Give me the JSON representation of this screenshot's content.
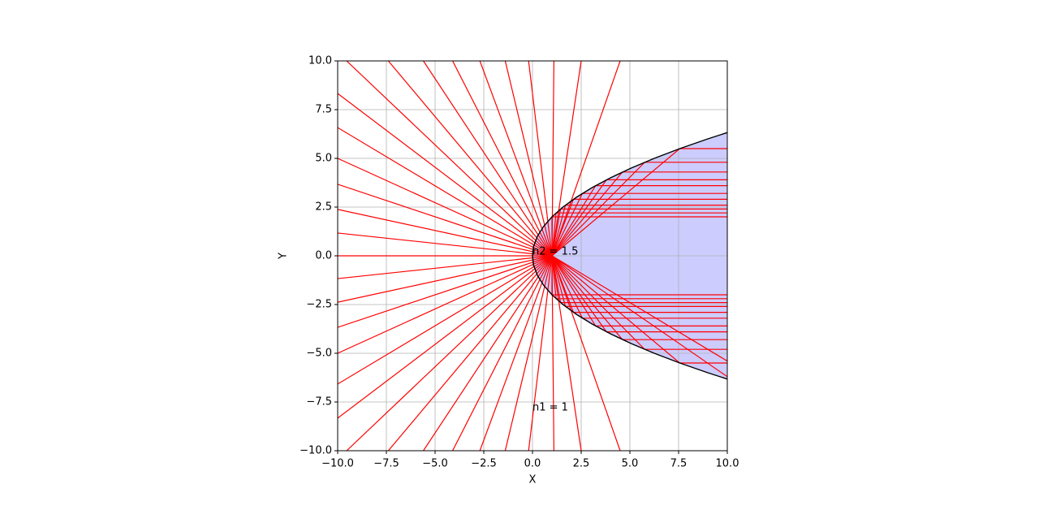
{
  "chart_data": {
    "type": "line",
    "xlabel": "X",
    "ylabel": "Y",
    "annotations": [
      "n2 = 1.5",
      "n1 = 1"
    ],
    "xlim": [
      -10,
      10
    ],
    "ylim": [
      -10,
      10
    ],
    "xticks": [
      {
        "value": -10,
        "label": "−10.0"
      },
      {
        "value": -7.5,
        "label": "−7.5"
      },
      {
        "value": -5,
        "label": "−5.0"
      },
      {
        "value": -2.5,
        "label": "−2.5"
      },
      {
        "value": 0,
        "label": "0.0"
      },
      {
        "value": 2.5,
        "label": "2.5"
      },
      {
        "value": 5,
        "label": "5.0"
      },
      {
        "value": 7.5,
        "label": "7.5"
      },
      {
        "value": 10,
        "label": "10.0"
      }
    ],
    "yticks": [
      {
        "value": -10,
        "label": "−10.0"
      },
      {
        "value": -7.5,
        "label": "−7.5"
      },
      {
        "value": -5,
        "label": "−5.0"
      },
      {
        "value": -2.5,
        "label": "−2.5"
      },
      {
        "value": 0,
        "label": "0.0"
      },
      {
        "value": 2.5,
        "label": "2.5"
      },
      {
        "value": 5,
        "label": "5.0"
      },
      {
        "value": 7.5,
        "label": "7.5"
      },
      {
        "value": 10,
        "label": "10.0"
      }
    ],
    "grid": true,
    "ray_color": "#ff0000",
    "boundary": {
      "color": "#000000",
      "fill": "#ccccff",
      "x": [
        9.99,
        9,
        7.5625,
        6.25,
        5.0625,
        4,
        3.0625,
        2.25,
        1.5625,
        1,
        0.5625,
        0.25,
        0.0625,
        0,
        0.0625,
        0.25,
        0.5625,
        1,
        1.5625,
        2.25,
        3.0625,
        4,
        5.0625,
        6.25,
        7.5625,
        9,
        9.99
      ],
      "y": [
        -6.32,
        -6,
        -5.5,
        -5,
        -4.5,
        -4,
        -3.5,
        -3,
        -2.5,
        -2,
        -1.5,
        -1,
        -0.5,
        0,
        0.5,
        1,
        1.5,
        2,
        2.5,
        3,
        3.5,
        4,
        4.5,
        5,
        5.5,
        6,
        6.32
      ]
    },
    "series": [
      {
        "x": [
          1,
          -9.54
        ],
        "y": [
          0,
          10
        ]
      },
      {
        "x": [
          1,
          -7.4
        ],
        "y": [
          0,
          10
        ]
      },
      {
        "x": [
          1,
          -5.6
        ],
        "y": [
          0,
          10
        ]
      },
      {
        "x": [
          1,
          -4.1
        ],
        "y": [
          0,
          10
        ]
      },
      {
        "x": [
          1,
          -2.7
        ],
        "y": [
          0,
          10
        ]
      },
      {
        "x": [
          1,
          -1.4
        ],
        "y": [
          0,
          10
        ]
      },
      {
        "x": [
          1,
          -0.2
        ],
        "y": [
          0,
          10
        ]
      },
      {
        "x": [
          1,
          1.1
        ],
        "y": [
          0,
          10
        ]
      },
      {
        "x": [
          1,
          2.5
        ],
        "y": [
          0,
          10
        ]
      },
      {
        "x": [
          1,
          4.5
        ],
        "y": [
          0,
          10
        ]
      },
      {
        "x": [
          1,
          -9.54
        ],
        "y": [
          0,
          -10
        ]
      },
      {
        "x": [
          1,
          -7.4
        ],
        "y": [
          0,
          -10
        ]
      },
      {
        "x": [
          1,
          -5.6
        ],
        "y": [
          0,
          -10
        ]
      },
      {
        "x": [
          1,
          -4.1
        ],
        "y": [
          0,
          -10
        ]
      },
      {
        "x": [
          1,
          -2.7
        ],
        "y": [
          0,
          -10
        ]
      },
      {
        "x": [
          1,
          -1.4
        ],
        "y": [
          0,
          -10
        ]
      },
      {
        "x": [
          1,
          -0.2
        ],
        "y": [
          0,
          -10
        ]
      },
      {
        "x": [
          1,
          1.1
        ],
        "y": [
          0,
          -10
        ]
      },
      {
        "x": [
          1,
          2.5
        ],
        "y": [
          0,
          -10
        ]
      },
      {
        "x": [
          1,
          4.5
        ],
        "y": [
          0,
          -10
        ]
      },
      {
        "x": [
          1,
          -10
        ],
        "y": [
          0,
          8.33
        ]
      },
      {
        "x": [
          1,
          -10
        ],
        "y": [
          0,
          6.58
        ]
      },
      {
        "x": [
          1,
          -10
        ],
        "y": [
          0,
          5
        ]
      },
      {
        "x": [
          1,
          -10
        ],
        "y": [
          0,
          3.67
        ]
      },
      {
        "x": [
          1,
          -10
        ],
        "y": [
          0,
          2.38
        ]
      },
      {
        "x": [
          1,
          -10
        ],
        "y": [
          0,
          1.17
        ]
      },
      {
        "x": [
          1,
          -10
        ],
        "y": [
          0,
          0
        ]
      },
      {
        "x": [
          1,
          -10
        ],
        "y": [
          0,
          -1.17
        ]
      },
      {
        "x": [
          1,
          -10
        ],
        "y": [
          0,
          -2.38
        ]
      },
      {
        "x": [
          1,
          -10
        ],
        "y": [
          0,
          -3.67
        ]
      },
      {
        "x": [
          1,
          -10
        ],
        "y": [
          0,
          -5
        ]
      },
      {
        "x": [
          1,
          -10
        ],
        "y": [
          0,
          -6.58
        ]
      },
      {
        "x": [
          1,
          -10
        ],
        "y": [
          0,
          -8.33
        ]
      },
      {
        "x": [
          1,
          1,
          10
        ],
        "y": [
          0,
          2,
          2
        ]
      },
      {
        "x": [
          1,
          1.21,
          10
        ],
        "y": [
          0,
          2.2,
          2.2
        ]
      },
      {
        "x": [
          1,
          1.44,
          10
        ],
        "y": [
          0,
          2.4,
          2.4
        ]
      },
      {
        "x": [
          1,
          1.69,
          10
        ],
        "y": [
          0,
          2.6,
          2.6
        ]
      },
      {
        "x": [
          1,
          2.1,
          10
        ],
        "y": [
          0,
          2.9,
          2.9
        ]
      },
      {
        "x": [
          1,
          2.56,
          10
        ],
        "y": [
          0,
          3.2,
          3.2
        ]
      },
      {
        "x": [
          1,
          3.24,
          10
        ],
        "y": [
          0,
          3.6,
          3.6
        ]
      },
      {
        "x": [
          1,
          3.8,
          10
        ],
        "y": [
          0,
          3.9,
          3.9
        ]
      },
      {
        "x": [
          1,
          4.62,
          10
        ],
        "y": [
          0,
          4.3,
          4.3
        ]
      },
      {
        "x": [
          1,
          5.76,
          10
        ],
        "y": [
          0,
          4.8,
          4.8
        ]
      },
      {
        "x": [
          1,
          7.56,
          10
        ],
        "y": [
          0,
          5.5,
          5.5
        ]
      },
      {
        "x": [
          1,
          1,
          10
        ],
        "y": [
          0,
          -2,
          -2
        ]
      },
      {
        "x": [
          1,
          1.21,
          10
        ],
        "y": [
          0,
          -2.2,
          -2.2
        ]
      },
      {
        "x": [
          1,
          1.44,
          10
        ],
        "y": [
          0,
          -2.4,
          -2.4
        ]
      },
      {
        "x": [
          1,
          1.69,
          10
        ],
        "y": [
          0,
          -2.6,
          -2.6
        ]
      },
      {
        "x": [
          1,
          2.1,
          10
        ],
        "y": [
          0,
          -2.9,
          -2.9
        ]
      },
      {
        "x": [
          1,
          2.56,
          10
        ],
        "y": [
          0,
          -3.2,
          -3.2
        ]
      },
      {
        "x": [
          1,
          3.24,
          10
        ],
        "y": [
          0,
          -3.6,
          -3.6
        ]
      },
      {
        "x": [
          1,
          3.8,
          10
        ],
        "y": [
          0,
          -3.9,
          -3.9
        ]
      },
      {
        "x": [
          1,
          4.62,
          10
        ],
        "y": [
          0,
          -4.3,
          -4.3
        ]
      },
      {
        "x": [
          1,
          5.76,
          10
        ],
        "y": [
          0,
          -4.8,
          -4.8
        ]
      },
      {
        "x": [
          1,
          7.56,
          10
        ],
        "y": [
          0,
          -5.5,
          -5.5
        ]
      },
      {
        "x": [
          1,
          10
        ],
        "y": [
          0,
          -5.4
        ]
      },
      {
        "x": [
          1,
          10
        ],
        "y": [
          0,
          -6.2
        ]
      }
    ]
  }
}
